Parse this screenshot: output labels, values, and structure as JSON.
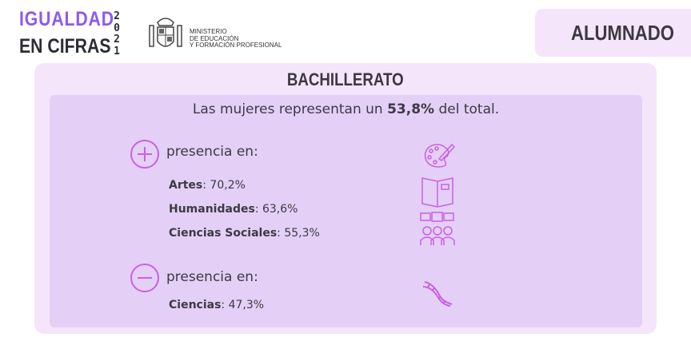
{
  "header": {
    "logo_line1": "IGUALDAD",
    "logo_line2": "EN CIFRAS",
    "year_digits": [
      "2",
      "0",
      "2",
      "1"
    ],
    "ministry_lines": [
      "MINISTERIO",
      "DE EDUCACIÓN",
      "Y FORMACIÓN PROFESIONAL"
    ]
  },
  "section_tag": "ALUMNADO",
  "panel": {
    "title": "BACHILLERATO",
    "lead_prefix": "Las mujeres representan un ",
    "lead_value": "53,8%",
    "lead_suffix": " del total.",
    "more": {
      "icon": "plus-circle-icon",
      "label": "presencia en:",
      "items": [
        {
          "name": "Artes",
          "value": ": 70,2%",
          "icon": "palette-icon"
        },
        {
          "name": "Humanidades",
          "value": ": 63,6%",
          "icon": "book-icon"
        },
        {
          "name": "Ciencias Sociales",
          "value": ": 55,3%",
          "icon": "people-feedback-icon"
        }
      ]
    },
    "less": {
      "icon": "minus-circle-icon",
      "label": "presencia en:",
      "items": [
        {
          "name": "Ciencias",
          "value": ": 47,3%",
          "icon": "dna-icon"
        }
      ]
    }
  },
  "colors": {
    "accent": "#8e58f2",
    "icon": "#c961e3",
    "outer": "#f5e5fa",
    "inner": "#e4cff7"
  }
}
